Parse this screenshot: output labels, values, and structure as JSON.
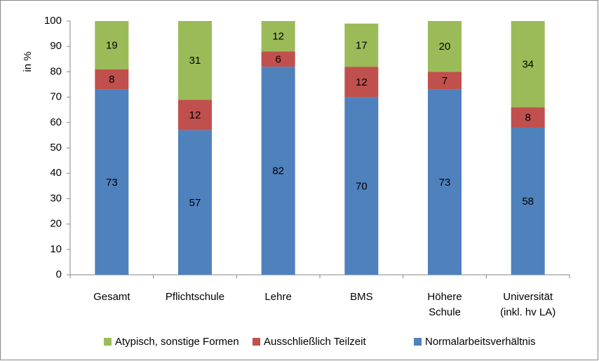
{
  "chart_data": {
    "type": "bar",
    "stacked": true,
    "y_label": "in %",
    "categories": [
      [
        "Gesamt"
      ],
      [
        "Pflichtschule"
      ],
      [
        "Lehre"
      ],
      [
        "BMS"
      ],
      [
        "Höhere",
        "Schule"
      ],
      [
        "Universität",
        "(inkl. hv LA)"
      ]
    ],
    "series": [
      {
        "name": "Normalarbeitsverhältnis",
        "color": "#4f81bd",
        "values": [
          73,
          57,
          82,
          70,
          73,
          58
        ]
      },
      {
        "name": "Ausschließlich Teilzeit",
        "color": "#c0504d",
        "values": [
          8,
          12,
          6,
          12,
          7,
          8
        ]
      },
      {
        "name": "Atypisch, sonstige Formen",
        "color": "#9bbb59",
        "values": [
          19,
          31,
          12,
          17,
          20,
          34
        ]
      }
    ],
    "ylim": [
      0,
      100
    ],
    "yticks": [
      0,
      10,
      20,
      30,
      40,
      50,
      60,
      70,
      80,
      90,
      100
    ],
    "grid": false,
    "legend": "bottom"
  }
}
